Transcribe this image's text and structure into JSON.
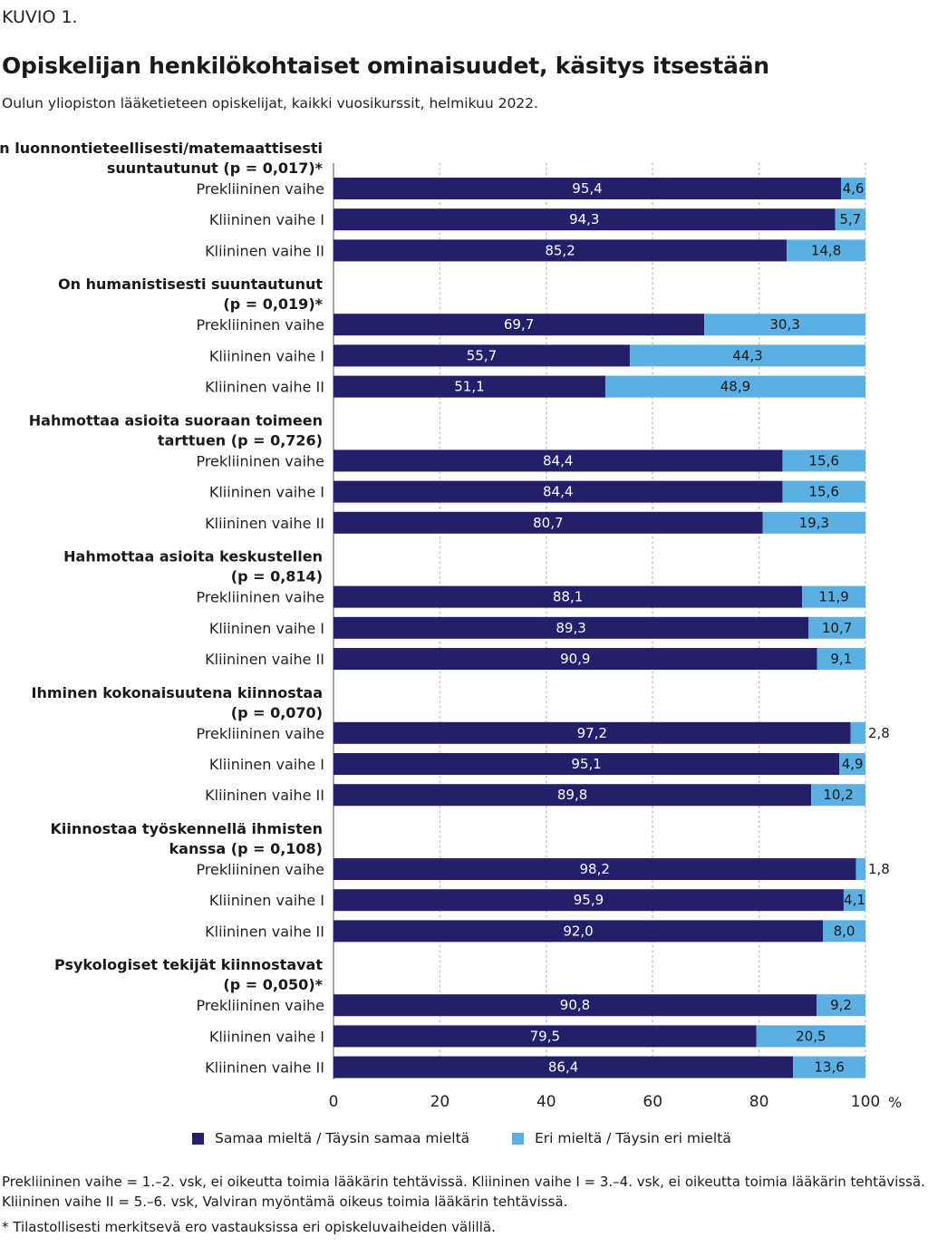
{
  "header": {
    "figure_label": "KUVIO 1.",
    "title": "Opiskelijan henkilökohtaiset ominaisuudet, käsitys itsestään",
    "subtitle": "Oulun yliopiston lääketieteen opiskelijat, kaikki vuosikurssit, helmikuu 2022."
  },
  "colors": {
    "agree": "#231F6B",
    "disagree": "#5BAFE2",
    "grid": "#c8c8c8",
    "axis": "#555555"
  },
  "legend": {
    "agree_label": "Samaa mieltä / Täysin samaa mieltä",
    "disagree_label": "Eri mieltä / Täysin eri mieltä"
  },
  "footnotes": {
    "line1": "Prekliininen vaihe = 1.–2. vsk, ei oikeutta toimia lääkärin tehtävissä. Kliininen vaihe I = 3.–4. vsk, ei oikeutta toimia lääkärin tehtävissä.",
    "line2": "Kliininen vaihe II = 5.–6. vsk, Valviran myöntämä oikeus toimia lääkärin tehtävissä.",
    "line3": "* Tilastollisesti merkitsevä ero vastauksissa eri opiskeluvaiheiden välillä."
  },
  "chart_data": {
    "type": "bar",
    "orientation": "horizontal",
    "stacked": true,
    "xlim": [
      0,
      100
    ],
    "x_ticks": [
      "0",
      "20",
      "40",
      "60",
      "80",
      "100"
    ],
    "x_unit": "%",
    "grid": true,
    "legend_position": "bottom",
    "groups": [
      {
        "title_lines": [
          "On luonnontieteellisesti/matemaattisesti",
          "suuntautunut (p = 0,017)*"
        ],
        "rows": [
          {
            "label": "Prekliininen vaihe",
            "agree": 95.4,
            "disagree": 4.6,
            "agree_text": "95,4",
            "disagree_text": "4,6"
          },
          {
            "label": "Kliininen vaihe I",
            "agree": 94.3,
            "disagree": 5.7,
            "agree_text": "94,3",
            "disagree_text": "5,7"
          },
          {
            "label": "Kliininen vaihe II",
            "agree": 85.2,
            "disagree": 14.8,
            "agree_text": "85,2",
            "disagree_text": "14,8"
          }
        ]
      },
      {
        "title_lines": [
          "On humanistisesti suuntautunut",
          "(p = 0,019)*"
        ],
        "rows": [
          {
            "label": "Prekliininen vaihe",
            "agree": 69.7,
            "disagree": 30.3,
            "agree_text": "69,7",
            "disagree_text": "30,3"
          },
          {
            "label": "Kliininen vaihe I",
            "agree": 55.7,
            "disagree": 44.3,
            "agree_text": "55,7",
            "disagree_text": "44,3"
          },
          {
            "label": "Kliininen vaihe II",
            "agree": 51.1,
            "disagree": 48.9,
            "agree_text": "51,1",
            "disagree_text": "48,9"
          }
        ]
      },
      {
        "title_lines": [
          "Hahmottaa asioita suoraan toimeen",
          "tarttuen (p = 0,726)"
        ],
        "rows": [
          {
            "label": "Prekliininen vaihe",
            "agree": 84.4,
            "disagree": 15.6,
            "agree_text": "84,4",
            "disagree_text": "15,6"
          },
          {
            "label": "Kliininen vaihe I",
            "agree": 84.4,
            "disagree": 15.6,
            "agree_text": "84,4",
            "disagree_text": "15,6"
          },
          {
            "label": "Kliininen vaihe II",
            "agree": 80.7,
            "disagree": 19.3,
            "agree_text": "80,7",
            "disagree_text": "19,3"
          }
        ]
      },
      {
        "title_lines": [
          "Hahmottaa asioita keskustellen",
          "(p = 0,814)"
        ],
        "rows": [
          {
            "label": "Prekliininen vaihe",
            "agree": 88.1,
            "disagree": 11.9,
            "agree_text": "88,1",
            "disagree_text": "11,9"
          },
          {
            "label": "Kliininen vaihe I",
            "agree": 89.3,
            "disagree": 10.7,
            "agree_text": "89,3",
            "disagree_text": "10,7"
          },
          {
            "label": "Kliininen vaihe II",
            "agree": 90.9,
            "disagree": 9.1,
            "agree_text": "90,9",
            "disagree_text": "9,1"
          }
        ]
      },
      {
        "title_lines": [
          "Ihminen kokonaisuutena kiinnostaa",
          "(p = 0,070)"
        ],
        "rows": [
          {
            "label": "Prekliininen vaihe",
            "agree": 97.2,
            "disagree": 2.8,
            "agree_text": "97,2",
            "disagree_text": "2,8"
          },
          {
            "label": "Kliininen vaihe I",
            "agree": 95.1,
            "disagree": 4.9,
            "agree_text": "95,1",
            "disagree_text": "4,9"
          },
          {
            "label": "Kliininen vaihe II",
            "agree": 89.8,
            "disagree": 10.2,
            "agree_text": "89,8",
            "disagree_text": "10,2"
          }
        ]
      },
      {
        "title_lines": [
          "Kiinnostaa työskennellä ihmisten",
          "kanssa (p = 0,108)"
        ],
        "rows": [
          {
            "label": "Prekliininen vaihe",
            "agree": 98.2,
            "disagree": 1.8,
            "agree_text": "98,2",
            "disagree_text": "1,8"
          },
          {
            "label": "Kliininen vaihe I",
            "agree": 95.9,
            "disagree": 4.1,
            "agree_text": "95,9",
            "disagree_text": "4,1"
          },
          {
            "label": "Kliininen vaihe II",
            "agree": 92.0,
            "disagree": 8.0,
            "agree_text": "92,0",
            "disagree_text": "8,0"
          }
        ]
      },
      {
        "title_lines": [
          "Psykologiset tekijät kiinnostavat",
          "(p = 0,050)*"
        ],
        "rows": [
          {
            "label": "Prekliininen vaihe",
            "agree": 90.8,
            "disagree": 9.2,
            "agree_text": "90,8",
            "disagree_text": "9,2"
          },
          {
            "label": "Kliininen vaihe I",
            "agree": 79.5,
            "disagree": 20.5,
            "agree_text": "79,5",
            "disagree_text": "20,5"
          },
          {
            "label": "Kliininen vaihe II",
            "agree": 86.4,
            "disagree": 13.6,
            "agree_text": "86,4",
            "disagree_text": "13,6"
          }
        ]
      }
    ]
  }
}
